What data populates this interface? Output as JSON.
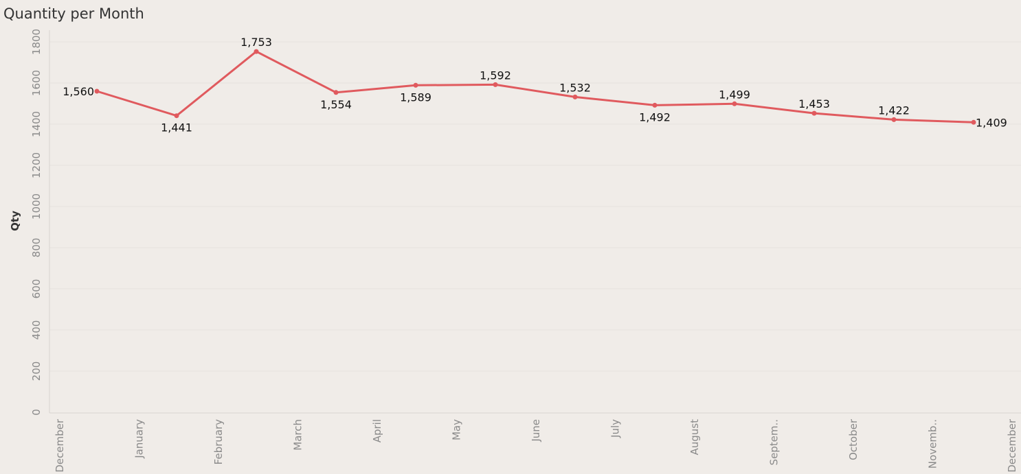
{
  "chart_data": {
    "type": "line",
    "title": "Quantity per Month",
    "xlabel": "",
    "ylabel": "Qty",
    "ylim": [
      0,
      1850
    ],
    "y_ticks": [
      "0",
      "200",
      "400",
      "600",
      "800",
      "1000",
      "1200",
      "1400",
      "1600",
      "1800"
    ],
    "x_tick_labels": [
      "December",
      "January",
      "February",
      "March",
      "April",
      "May",
      "June",
      "July",
      "August",
      "Septem..",
      "October",
      "Novemb..",
      "December"
    ],
    "grid": true,
    "series_color": "#e05a5e",
    "series": [
      {
        "values": [
          1560,
          1441,
          1753,
          1554,
          1589,
          1592,
          1532,
          1492,
          1499,
          1453,
          1422,
          1409
        ],
        "labels": [
          "1,560",
          "1,441",
          "1,753",
          "1,554",
          "1,589",
          "1,592",
          "1,532",
          "1,492",
          "1,499",
          "1,453",
          "1,422",
          "1,409"
        ]
      }
    ]
  }
}
